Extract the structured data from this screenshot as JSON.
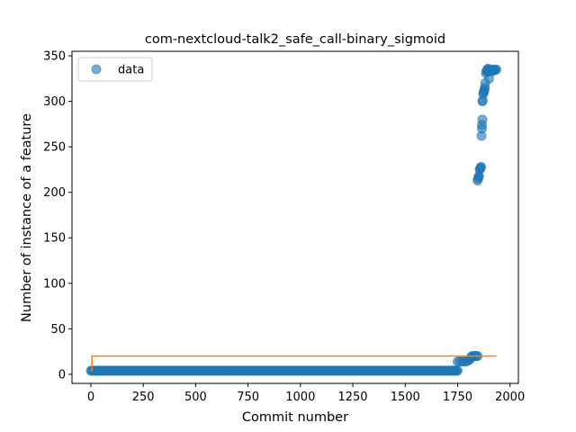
{
  "chart_data": {
    "type": "scatter",
    "title": "com-nextcloud-talk2_safe_call-binary_sigmoid",
    "xlabel": "Commit number",
    "ylabel": "Number of instance of a feature",
    "xlim": [
      -90,
      2040
    ],
    "ylim": [
      -10,
      355
    ],
    "xticks": [
      0,
      250,
      500,
      750,
      1000,
      1250,
      1500,
      1750,
      2000
    ],
    "yticks": [
      0,
      50,
      100,
      150,
      200,
      250,
      300,
      350
    ],
    "grid": false,
    "legend": {
      "placement": "top-left",
      "entries": [
        "data"
      ]
    },
    "series": [
      {
        "name": "data",
        "style": "markers",
        "color": "#1f77b4",
        "segments": [
          {
            "x_start": 0,
            "x_end": 1750,
            "y": 4
          }
        ],
        "points": [
          [
            1750,
            14
          ],
          [
            1760,
            14
          ],
          [
            1770,
            14
          ],
          [
            1780,
            14
          ],
          [
            1790,
            14
          ],
          [
            1800,
            15
          ],
          [
            1805,
            16
          ],
          [
            1810,
            17
          ],
          [
            1815,
            19
          ],
          [
            1820,
            20
          ],
          [
            1825,
            20
          ],
          [
            1830,
            20
          ],
          [
            1835,
            20
          ],
          [
            1840,
            20
          ],
          [
            1845,
            20
          ],
          [
            1845,
            213
          ],
          [
            1848,
            215
          ],
          [
            1850,
            217
          ],
          [
            1852,
            218
          ],
          [
            1855,
            225
          ],
          [
            1858,
            226
          ],
          [
            1860,
            227
          ],
          [
            1862,
            228
          ],
          [
            1864,
            262
          ],
          [
            1866,
            270
          ],
          [
            1866,
            274
          ],
          [
            1868,
            280
          ],
          [
            1868,
            300
          ],
          [
            1870,
            301
          ],
          [
            1872,
            308
          ],
          [
            1874,
            310
          ],
          [
            1876,
            311
          ],
          [
            1878,
            313
          ],
          [
            1880,
            315
          ],
          [
            1882,
            320
          ],
          [
            1885,
            331
          ],
          [
            1888,
            333
          ],
          [
            1890,
            334
          ],
          [
            1892,
            335
          ],
          [
            1895,
            336
          ],
          [
            1898,
            333
          ],
          [
            1900,
            325
          ],
          [
            1903,
            333
          ],
          [
            1906,
            335
          ],
          [
            1910,
            334
          ],
          [
            1915,
            333
          ],
          [
            1920,
            335
          ],
          [
            1925,
            334
          ],
          [
            1930,
            335
          ],
          [
            1935,
            335
          ]
        ]
      },
      {
        "name": "",
        "style": "line",
        "color": "#ff7f0e",
        "x": [
          0,
          5,
          5,
          1935
        ],
        "y": [
          4,
          4,
          20,
          20
        ]
      }
    ]
  }
}
